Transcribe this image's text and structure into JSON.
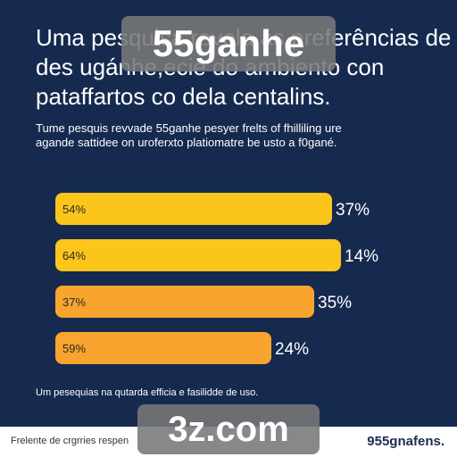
{
  "title_lines": [
    "Uma pesquisa revela as preferências de",
    "des ugánhe,eciê do ambiento con",
    "pataffartos co dela centalins."
  ],
  "subtitle_lines": [
    "Tume pesquis revvade 55ganhe pesyer frelts of fhilliling ure",
    "agande sattidee on uroferxto platiomatre be usto a f0gané."
  ],
  "colors": {
    "background": "#162a4f",
    "bar_gold": "#fcc51c",
    "bar_orange": "#f9a42e",
    "watermark": "#7f7f7f"
  },
  "chart_data": {
    "type": "bar",
    "orientation": "horizontal",
    "categories": [
      "54%",
      "64%",
      "37%",
      "59%"
    ],
    "values": [
      37,
      14,
      35,
      24
    ],
    "value_labels": [
      "37%",
      "14%",
      "35%",
      "24%"
    ],
    "bar_colors": [
      "#fcc51c",
      "#fcc51c",
      "#f9a42e",
      "#f9a42e"
    ],
    "note": "Um pesequias na qutarda efficia e fasilidde de uso."
  },
  "footer": {
    "left_text": "Frelente de crgrries respen",
    "right_brand": "955gnafens."
  },
  "watermarks": {
    "top": "55ganhe",
    "bottom": "3z.com"
  }
}
